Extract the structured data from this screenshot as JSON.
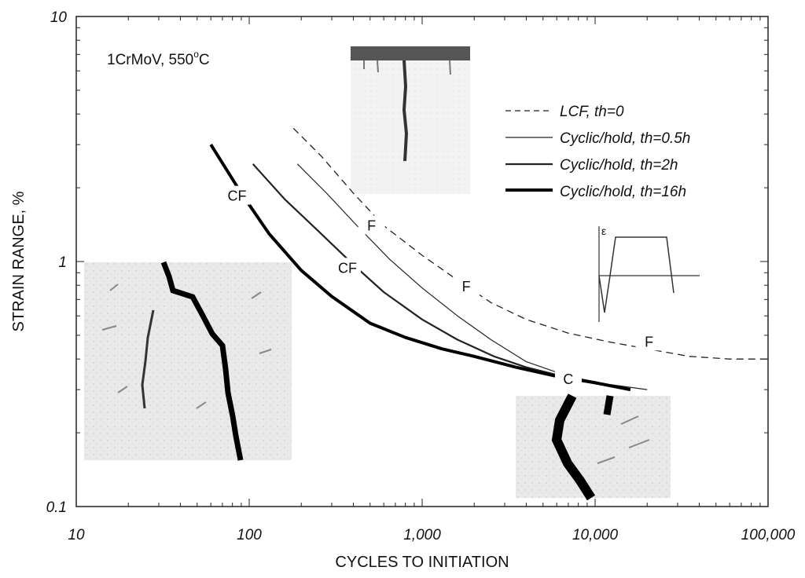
{
  "chart_data": {
    "type": "line",
    "title": "",
    "annotation": "1CrMoV, 550",
    "annotation_sup": "o",
    "annotation_unit": "C",
    "xlabel": "CYCLES TO INITIATION",
    "ylabel": "STRAIN RANGE, %",
    "xscale": "log",
    "yscale": "log",
    "xlim": [
      10,
      100000
    ],
    "ylim": [
      0.1,
      10
    ],
    "x_ticks": [
      {
        "value": 10,
        "label": "10"
      },
      {
        "value": 100,
        "label": "100"
      },
      {
        "value": 1000,
        "label": "1,000"
      },
      {
        "value": 10000,
        "label": "10,000"
      },
      {
        "value": 100000,
        "label": "100,000"
      }
    ],
    "y_ticks": [
      {
        "value": 0.1,
        "label": "0.1"
      },
      {
        "value": 1,
        "label": "1"
      },
      {
        "value": 10,
        "label": "10"
      }
    ],
    "legend_position": "top-right",
    "series": [
      {
        "name": "LCF, th=0",
        "style": "dashed",
        "x": [
          180,
          260,
          400,
          600,
          1000,
          1600,
          2500,
          4000,
          7000,
          12000,
          20000,
          35000,
          60000,
          100000
        ],
        "y": [
          3.5,
          2.7,
          1.9,
          1.4,
          1.06,
          0.84,
          0.68,
          0.58,
          0.51,
          0.47,
          0.44,
          0.41,
          0.4,
          0.4
        ]
      },
      {
        "name": "Cyclic/hold, th=0.5h",
        "style": "thin",
        "x": [
          190,
          280,
          420,
          650,
          1000,
          1600,
          2500,
          4000,
          7000,
          12000,
          20000
        ],
        "y": [
          2.5,
          1.9,
          1.4,
          1.02,
          0.78,
          0.6,
          0.48,
          0.39,
          0.34,
          0.315,
          0.3
        ]
      },
      {
        "name": "Cyclic/hold, th=2h",
        "style": "medium",
        "x": [
          105,
          160,
          260,
          400,
          600,
          1000,
          1600,
          2600,
          4000,
          6500,
          10000,
          16000
        ],
        "y": [
          2.5,
          1.8,
          1.3,
          0.97,
          0.75,
          0.58,
          0.48,
          0.41,
          0.37,
          0.34,
          0.32,
          0.3
        ]
      },
      {
        "name": "Cyclic/hold, th=16h",
        "style": "thick",
        "x": [
          60,
          90,
          130,
          200,
          300,
          500,
          800,
          1300,
          2000,
          3500,
          6000,
          10000,
          16000
        ],
        "y": [
          3.0,
          1.9,
          1.3,
          0.92,
          0.72,
          0.56,
          0.49,
          0.44,
          0.41,
          0.37,
          0.34,
          0.32,
          0.3
        ]
      }
    ],
    "mode_labels": [
      {
        "text": "CF",
        "x": 85,
        "y": 1.85
      },
      {
        "text": "F",
        "x": 510,
        "y": 1.4
      },
      {
        "text": "CF",
        "x": 370,
        "y": 0.94
      },
      {
        "text": "F",
        "x": 1800,
        "y": 0.79
      },
      {
        "text": "F",
        "x": 20500,
        "y": 0.47
      },
      {
        "text": "C",
        "x": 7000,
        "y": 0.33
      }
    ],
    "inset_waveform_label": "ε"
  }
}
